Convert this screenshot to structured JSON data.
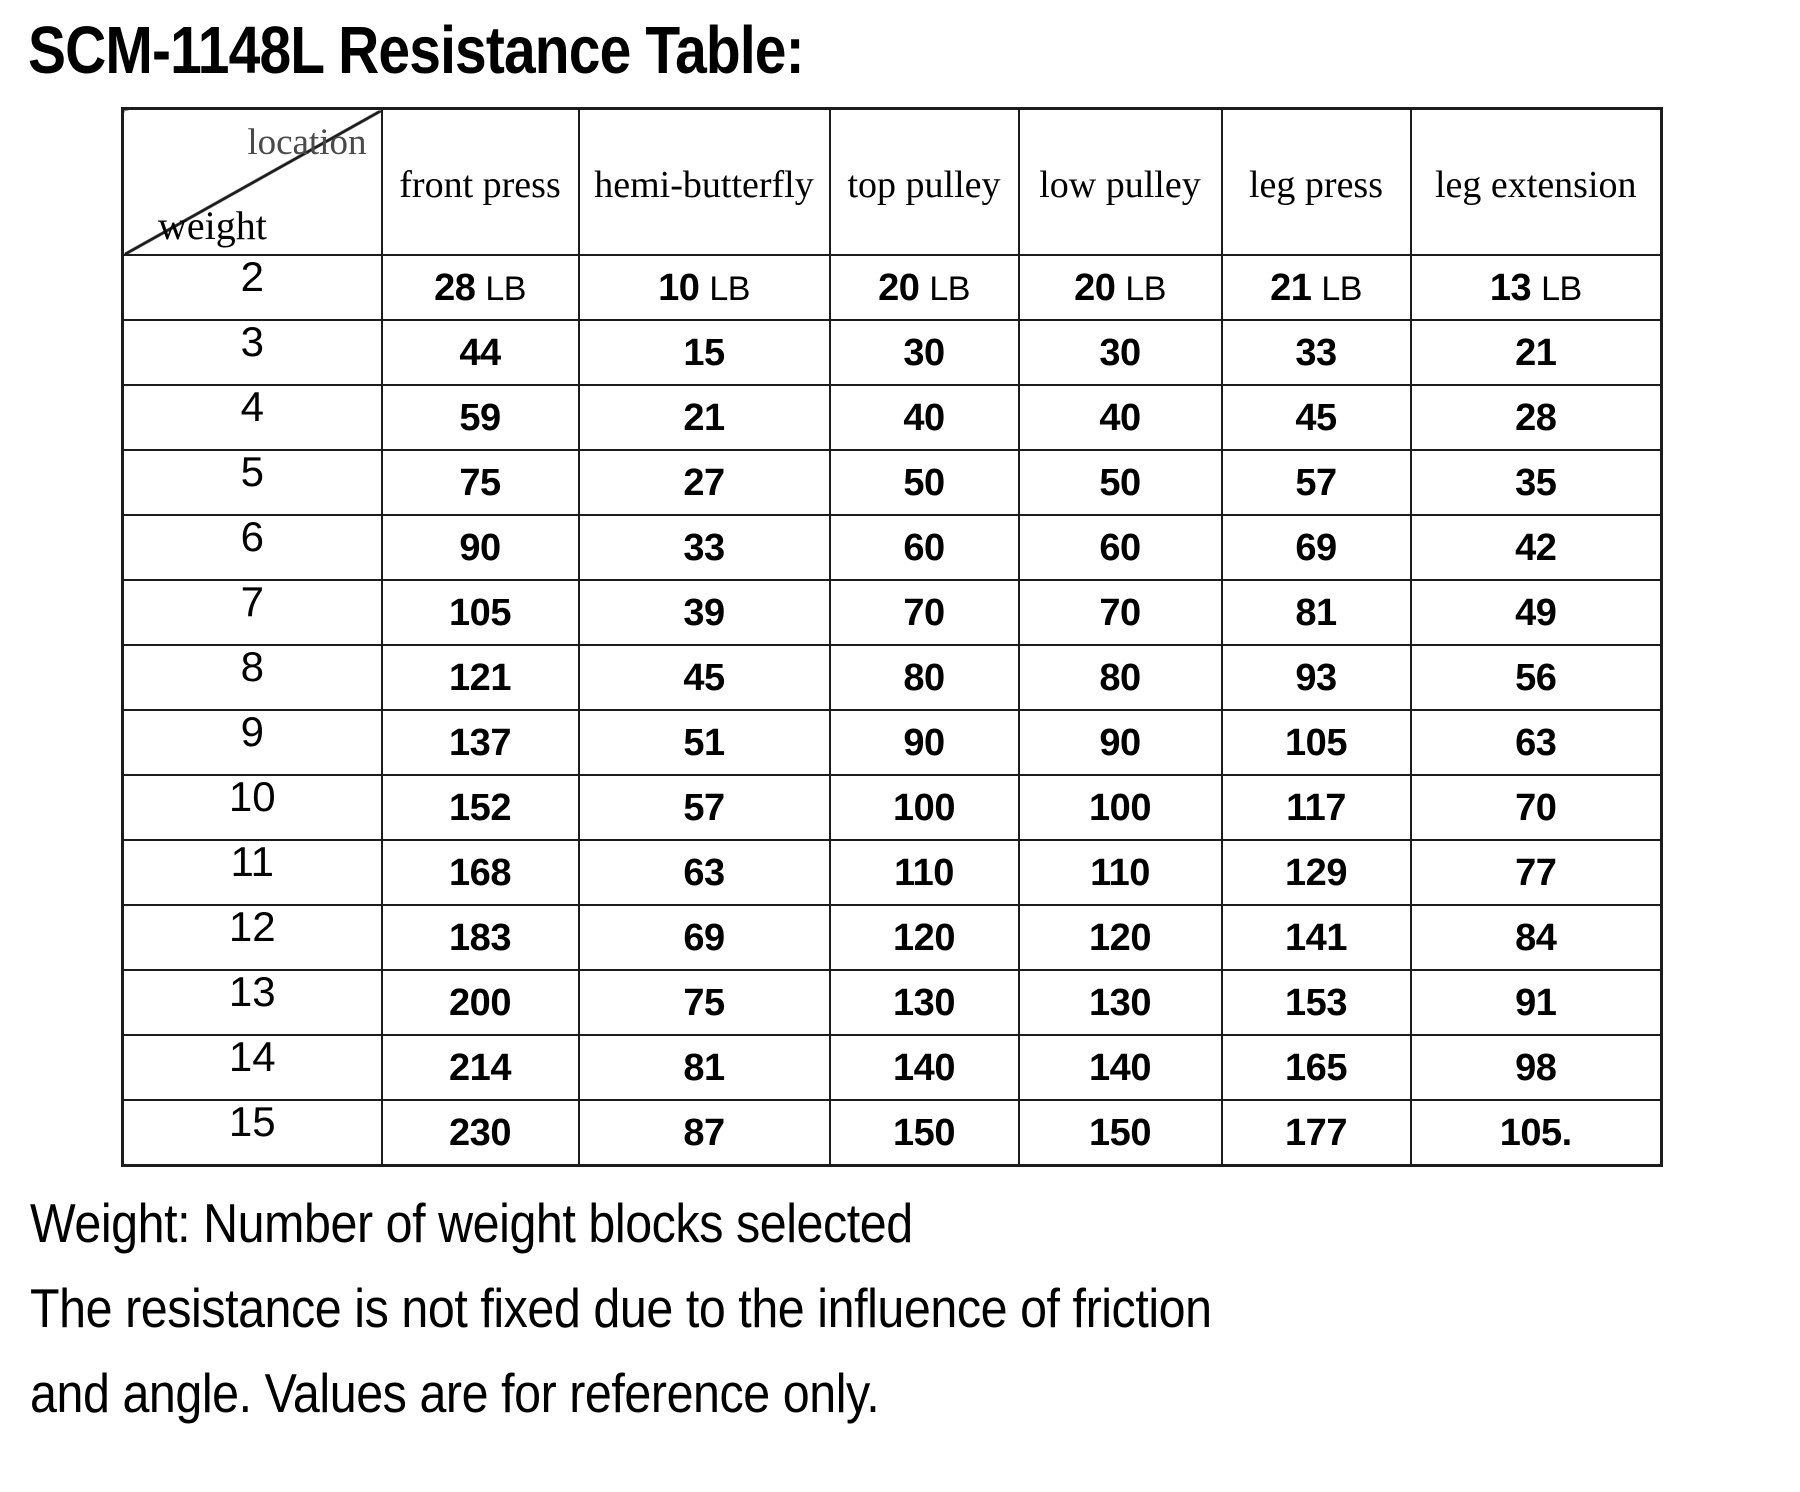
{
  "title": "SCM-1148L Resistance Table:",
  "table": {
    "corner": {
      "top_label": "location",
      "bottom_label": "weight"
    },
    "columns": [
      "front press",
      "hemi-butterfly",
      "top pulley",
      "low pulley",
      "leg press",
      "leg extension"
    ],
    "unit_label": "LB",
    "rows": [
      {
        "weight": "2",
        "show_unit": true,
        "values": [
          "28",
          "10",
          "20",
          "20",
          "21",
          "13"
        ]
      },
      {
        "weight": "3",
        "show_unit": false,
        "values": [
          "44",
          "15",
          "30",
          "30",
          "33",
          "21"
        ]
      },
      {
        "weight": "4",
        "show_unit": false,
        "values": [
          "59",
          "21",
          "40",
          "40",
          "45",
          "28"
        ]
      },
      {
        "weight": "5",
        "show_unit": false,
        "values": [
          "75",
          "27",
          "50",
          "50",
          "57",
          "35"
        ]
      },
      {
        "weight": "6",
        "show_unit": false,
        "values": [
          "90",
          "33",
          "60",
          "60",
          "69",
          "42"
        ]
      },
      {
        "weight": "7",
        "show_unit": false,
        "values": [
          "105",
          "39",
          "70",
          "70",
          "81",
          "49"
        ]
      },
      {
        "weight": "8",
        "show_unit": false,
        "values": [
          "121",
          "45",
          "80",
          "80",
          "93",
          "56"
        ]
      },
      {
        "weight": "9",
        "show_unit": false,
        "values": [
          "137",
          "51",
          "90",
          "90",
          "105",
          "63"
        ]
      },
      {
        "weight": "10",
        "show_unit": false,
        "values": [
          "152",
          "57",
          "100",
          "100",
          "117",
          "70"
        ]
      },
      {
        "weight": "11",
        "show_unit": false,
        "values": [
          "168",
          "63",
          "110",
          "110",
          "129",
          "77"
        ]
      },
      {
        "weight": "12",
        "show_unit": false,
        "values": [
          "183",
          "69",
          "120",
          "120",
          "141",
          "84"
        ]
      },
      {
        "weight": "13",
        "show_unit": false,
        "values": [
          "200",
          "75",
          "130",
          "130",
          "153",
          "91"
        ]
      },
      {
        "weight": "14",
        "show_unit": false,
        "values": [
          "214",
          "81",
          "140",
          "140",
          "165",
          "98"
        ]
      },
      {
        "weight": "15",
        "show_unit": false,
        "values": [
          "230",
          "87",
          "150",
          "150",
          "177",
          "105."
        ]
      }
    ]
  },
  "notes": [
    "Weight: Number of weight blocks selected",
    "The resistance is not fixed due to the influence of friction",
    "and angle. Values are for reference only."
  ]
}
